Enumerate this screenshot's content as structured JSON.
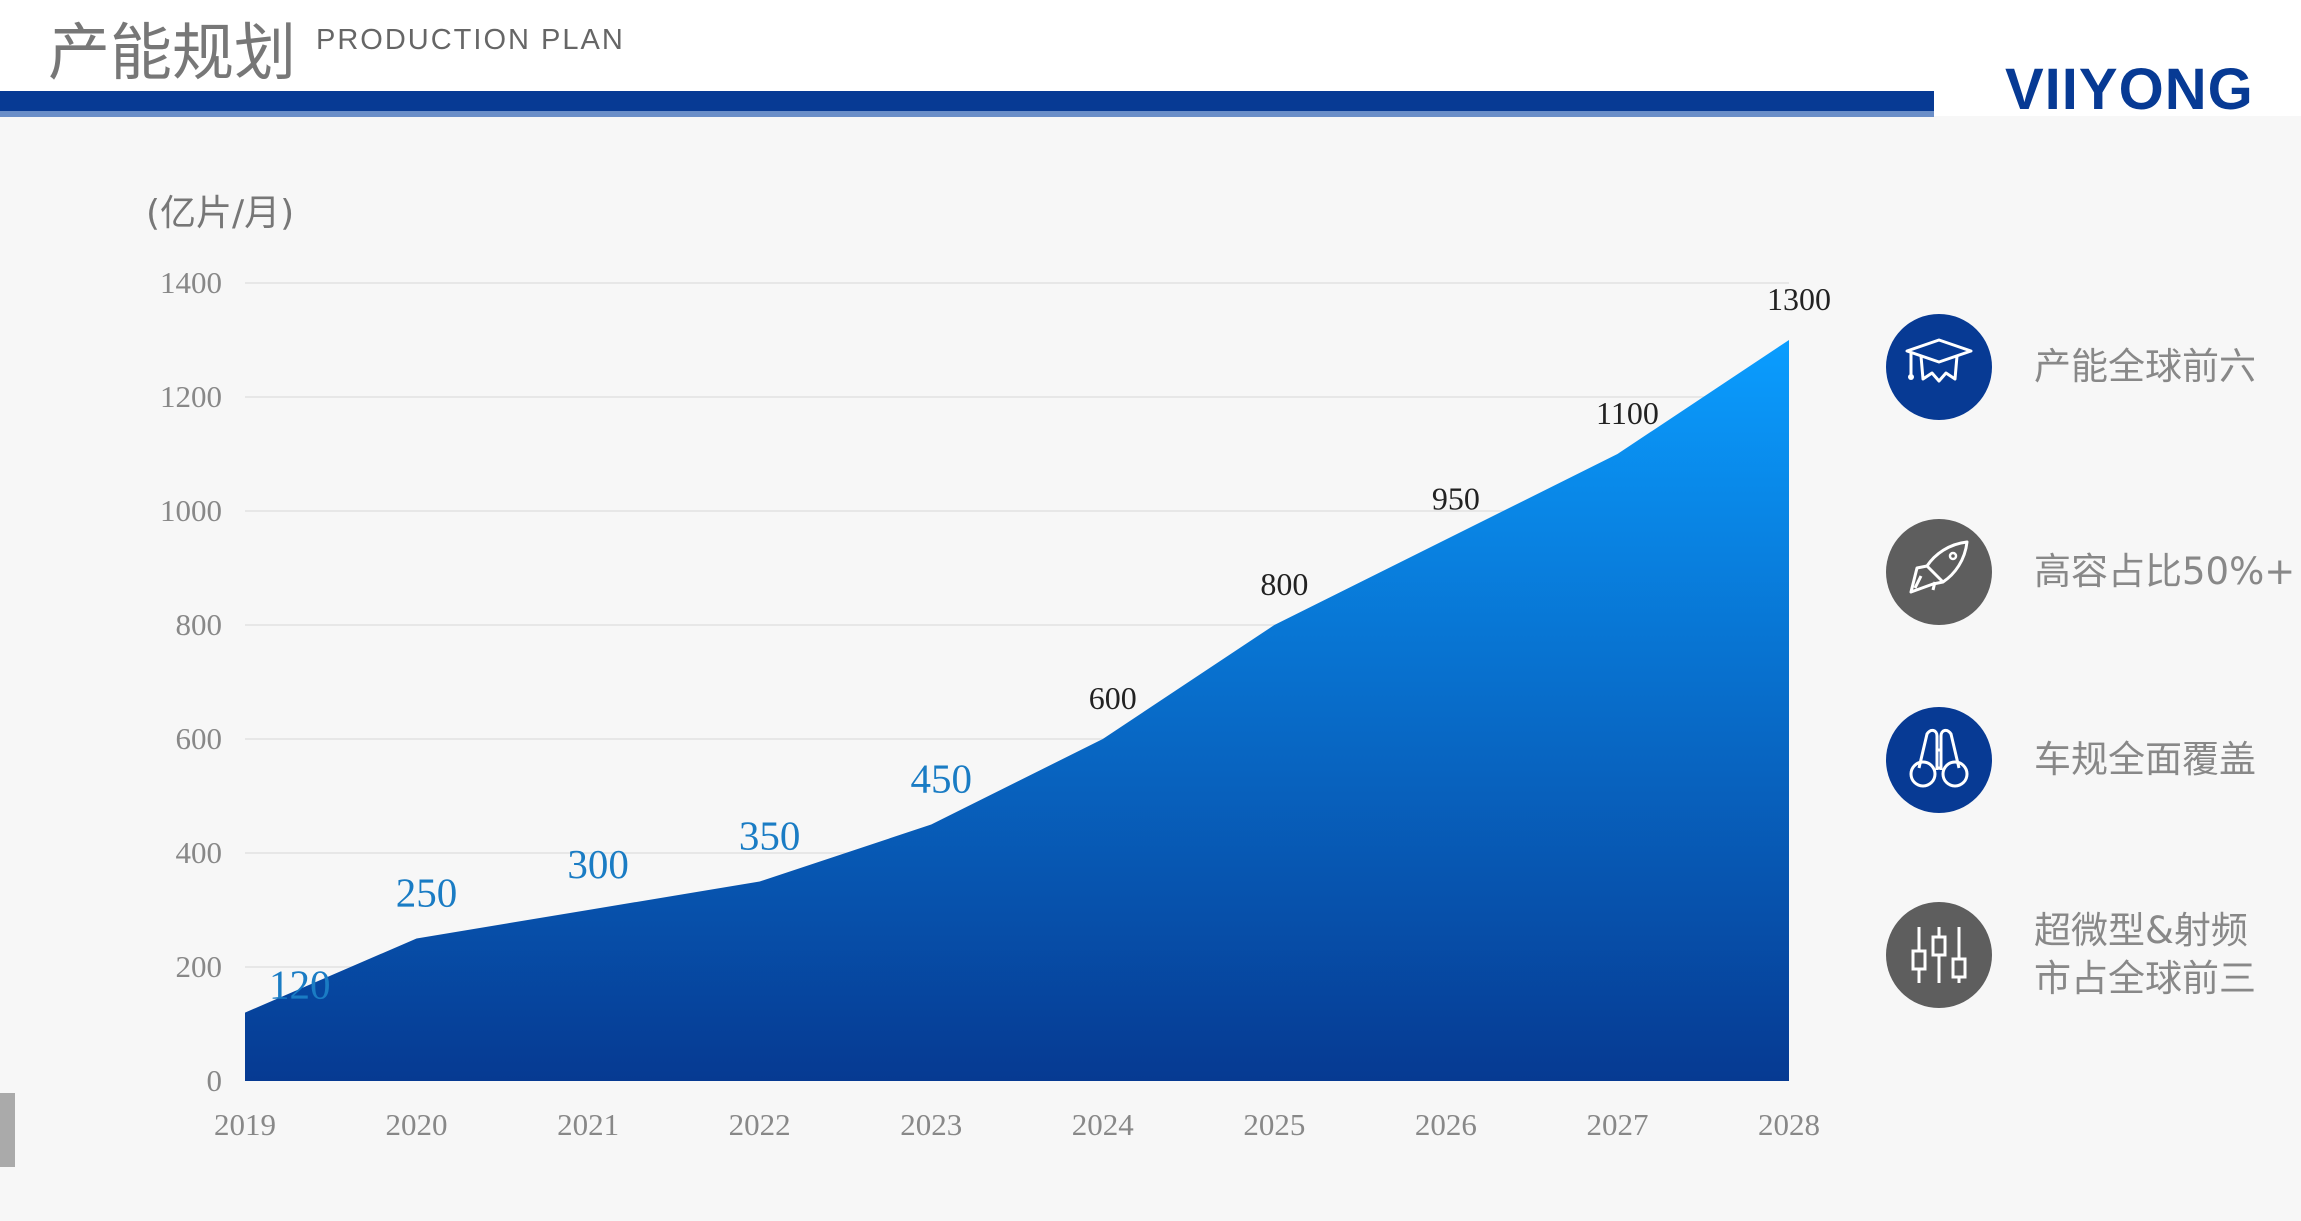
{
  "header": {
    "title_cn": "产能规划",
    "title_en": "PRODUCTION PLAN",
    "logo": "VIIYONG"
  },
  "chart_data": {
    "type": "area",
    "unit_label": "(亿片/月)",
    "categories": [
      "2019",
      "2020",
      "2021",
      "2022",
      "2023",
      "2024",
      "2025",
      "2026",
      "2027",
      "2028"
    ],
    "values": [
      120,
      250,
      300,
      350,
      450,
      600,
      800,
      950,
      1100,
      1300
    ],
    "data_labels": [
      "120",
      "250",
      "300",
      "350",
      "450",
      "600",
      "800",
      "950",
      "1100",
      "1300"
    ],
    "yticks": [
      "0",
      "200",
      "400",
      "600",
      "800",
      "1000",
      "1200",
      "1400"
    ],
    "ylim": [
      0,
      1400
    ],
    "grid": true,
    "colors": {
      "area_top": "#0a9dff",
      "area_bottom": "#063a92",
      "label_highlight": "#1a7cc4",
      "label_normal": "#222222"
    }
  },
  "highlights": [
    {
      "icon": "graduation-cap-icon",
      "color": "#073a94",
      "text": [
        "产能全球前六"
      ]
    },
    {
      "icon": "rocket-icon",
      "color": "#5e5e5e",
      "text": [
        "高容占比50%+"
      ]
    },
    {
      "icon": "binoculars-icon",
      "color": "#073a94",
      "text": [
        "车规全面覆盖"
      ]
    },
    {
      "icon": "sliders-icon",
      "color": "#5e5e5e",
      "text": [
        "超微型&射频",
        "市占全球前三"
      ]
    }
  ]
}
